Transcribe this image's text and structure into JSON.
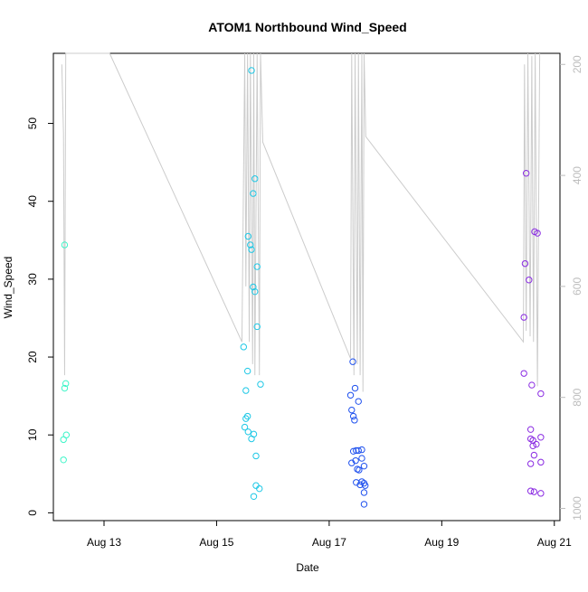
{
  "chart_data": {
    "type": "scatter",
    "title": "ATOM1 Northbound Wind_Speed",
    "xlabel": "Date",
    "ylabel": "Wind_Speed",
    "x_ticks": [
      "Aug 13",
      "Aug 15",
      "Aug 17",
      "Aug 19",
      "Aug 21"
    ],
    "y_ticks": [
      "0",
      "10",
      "20",
      "30",
      "40",
      "50"
    ],
    "y_right_ticks": [
      "200",
      "400",
      "600",
      "800",
      "1000"
    ],
    "xlim_days": [
      12.1,
      21.1
    ],
    "ylim": [
      -1,
      59
    ],
    "y_right_lim": [
      1022,
      180
    ],
    "grid": false,
    "colors": {
      "points_early": "#33f0c8",
      "points_mid1": "#1ec8e6",
      "points_mid2": "#1e64f0",
      "points_late": "#8a2be2",
      "secondary_line": "#cccccc",
      "right_axis": "#bdbdbd"
    },
    "series": [
      {
        "color": "#3df5c8",
        "points": [
          [
            12.3,
            34.4
          ],
          [
            12.3,
            16.0
          ],
          [
            12.32,
            16.6
          ],
          [
            12.28,
            9.4
          ],
          [
            12.33,
            10.0
          ],
          [
            12.28,
            6.8
          ]
        ]
      },
      {
        "color": "#1ec8e6",
        "points": [
          [
            15.62,
            56.8
          ],
          [
            15.68,
            42.9
          ],
          [
            15.65,
            41.0
          ],
          [
            15.56,
            35.5
          ],
          [
            15.6,
            34.4
          ],
          [
            15.62,
            33.8
          ],
          [
            15.72,
            31.6
          ],
          [
            15.65,
            29.0
          ],
          [
            15.68,
            28.4
          ],
          [
            15.72,
            23.9
          ],
          [
            15.48,
            21.3
          ],
          [
            15.55,
            18.2
          ],
          [
            15.78,
            16.5
          ],
          [
            15.52,
            15.7
          ],
          [
            15.52,
            12.1
          ],
          [
            15.55,
            12.4
          ],
          [
            15.5,
            11.0
          ],
          [
            15.56,
            10.4
          ],
          [
            15.66,
            10.1
          ],
          [
            15.62,
            9.5
          ],
          [
            15.7,
            7.3
          ],
          [
            15.7,
            3.5
          ],
          [
            15.76,
            3.1
          ],
          [
            15.66,
            2.1
          ]
        ]
      },
      {
        "color": "#1e50ee",
        "points": [
          [
            17.42,
            19.4
          ],
          [
            17.46,
            16.0
          ],
          [
            17.38,
            15.1
          ],
          [
            17.52,
            14.3
          ],
          [
            17.4,
            13.2
          ],
          [
            17.43,
            12.4
          ],
          [
            17.45,
            11.9
          ],
          [
            17.48,
            8.0
          ],
          [
            17.43,
            7.9
          ],
          [
            17.58,
            8.1
          ],
          [
            17.52,
            8.0
          ],
          [
            17.47,
            6.7
          ],
          [
            17.58,
            7.0
          ],
          [
            17.4,
            6.4
          ],
          [
            17.62,
            6.0
          ],
          [
            17.5,
            5.6
          ],
          [
            17.53,
            5.5
          ],
          [
            17.48,
            3.9
          ],
          [
            17.58,
            4.0
          ],
          [
            17.62,
            3.8
          ],
          [
            17.55,
            3.6
          ],
          [
            17.64,
            3.5
          ],
          [
            17.62,
            2.6
          ],
          [
            17.62,
            1.1
          ]
        ]
      },
      {
        "color": "#8a2be2",
        "points": [
          [
            20.5,
            43.6
          ],
          [
            20.65,
            36.1
          ],
          [
            20.7,
            35.9
          ],
          [
            20.48,
            32.0
          ],
          [
            20.55,
            29.9
          ],
          [
            20.46,
            25.1
          ],
          [
            20.46,
            17.9
          ],
          [
            20.6,
            16.4
          ],
          [
            20.76,
            15.3
          ],
          [
            20.58,
            10.7
          ],
          [
            20.58,
            9.5
          ],
          [
            20.62,
            9.3
          ],
          [
            20.76,
            9.7
          ],
          [
            20.68,
            8.8
          ],
          [
            20.62,
            8.6
          ],
          [
            20.64,
            7.4
          ],
          [
            20.58,
            6.3
          ],
          [
            20.76,
            6.5
          ],
          [
            20.58,
            2.8
          ],
          [
            20.64,
            2.7
          ],
          [
            20.76,
            2.5
          ]
        ]
      }
    ],
    "secondary_line": [
      [
        12.25,
        200
      ],
      [
        12.28,
        325
      ],
      [
        12.3,
        760
      ],
      [
        12.32,
        180
      ],
      [
        12.38,
        180
      ],
      [
        12.5,
        180
      ],
      [
        13.1,
        180
      ],
      [
        15.45,
        700
      ],
      [
        15.5,
        180
      ],
      [
        15.52,
        600
      ],
      [
        15.55,
        180
      ],
      [
        15.58,
        700
      ],
      [
        15.6,
        180
      ],
      [
        15.64,
        740
      ],
      [
        15.66,
        180
      ],
      [
        15.68,
        760
      ],
      [
        15.72,
        180
      ],
      [
        15.76,
        760
      ],
      [
        15.78,
        180
      ],
      [
        15.82,
        340
      ],
      [
        17.38,
        730
      ],
      [
        17.4,
        180
      ],
      [
        17.44,
        760
      ],
      [
        17.46,
        180
      ],
      [
        17.5,
        740
      ],
      [
        17.52,
        180
      ],
      [
        17.55,
        760
      ],
      [
        17.58,
        180
      ],
      [
        17.6,
        790
      ],
      [
        17.62,
        180
      ],
      [
        17.65,
        330
      ],
      [
        20.45,
        700
      ],
      [
        20.47,
        200
      ],
      [
        20.5,
        680
      ],
      [
        20.53,
        180
      ],
      [
        20.57,
        690
      ],
      [
        20.6,
        185
      ],
      [
        20.63,
        700
      ],
      [
        20.66,
        180
      ],
      [
        20.7,
        780
      ],
      [
        20.74,
        180
      ]
    ]
  }
}
